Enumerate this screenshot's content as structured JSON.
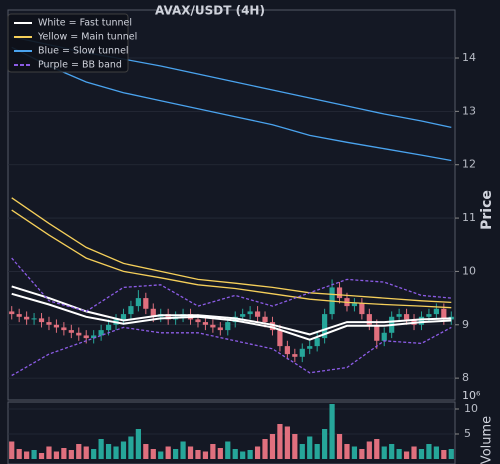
{
  "chart_data": {
    "type": "candlestick",
    "title": "AVAX/USDT (4H)",
    "ylabel": "Price",
    "volume_label": "Volume",
    "volume_offset_label": "10⁶",
    "ylim": [
      7.59,
      14.9
    ],
    "yticks": [
      8,
      9,
      10,
      11,
      12,
      13,
      14
    ],
    "vol_ylim": [
      0,
      11
    ],
    "vol_yticks": [
      5,
      10
    ],
    "grid": true,
    "up_color": "#26a69a",
    "down_color": "#e0707e",
    "open": [
      9.25,
      9.2,
      9.15,
      9.1,
      9.12,
      9.05,
      9.0,
      8.95,
      8.9,
      8.85,
      8.8,
      8.75,
      8.8,
      8.9,
      9.0,
      9.1,
      9.2,
      9.35,
      9.5,
      9.3,
      9.15,
      9.2,
      9.1,
      9.15,
      9.2,
      9.1,
      9.05,
      9.0,
      8.95,
      8.9,
      9.05,
      9.15,
      9.2,
      9.25,
      9.15,
      9.05,
      8.9,
      8.6,
      8.45,
      8.4,
      8.55,
      8.6,
      8.75,
      9.2,
      9.7,
      9.5,
      9.35,
      9.4,
      9.2,
      9.0,
      8.7,
      8.85,
      9.15,
      9.2,
      9.1,
      9.0,
      9.15,
      9.2,
      9.3,
      9.1
    ],
    "high": [
      9.35,
      9.3,
      9.25,
      9.22,
      9.22,
      9.15,
      9.1,
      9.05,
      9.0,
      8.95,
      8.9,
      8.9,
      9.0,
      9.1,
      9.2,
      9.3,
      9.45,
      9.65,
      9.6,
      9.4,
      9.3,
      9.3,
      9.25,
      9.3,
      9.3,
      9.2,
      9.15,
      9.1,
      9.05,
      9.15,
      9.25,
      9.3,
      9.35,
      9.35,
      9.25,
      9.15,
      9.0,
      8.7,
      8.55,
      8.65,
      8.7,
      8.85,
      9.3,
      9.85,
      9.8,
      9.6,
      9.5,
      9.5,
      9.3,
      9.1,
      8.95,
      9.25,
      9.3,
      9.3,
      9.2,
      9.25,
      9.3,
      9.4,
      9.4,
      9.25
    ],
    "low": [
      9.1,
      9.05,
      9.0,
      9.0,
      8.95,
      8.9,
      8.85,
      8.8,
      8.75,
      8.7,
      8.65,
      8.65,
      8.7,
      8.8,
      8.9,
      9.0,
      9.1,
      9.25,
      9.2,
      9.05,
      9.05,
      9.0,
      9.0,
      9.05,
      9.0,
      8.95,
      8.9,
      8.85,
      8.8,
      8.8,
      8.95,
      9.05,
      9.1,
      9.05,
      8.95,
      8.8,
      8.5,
      8.35,
      8.3,
      8.3,
      8.45,
      8.5,
      8.65,
      9.1,
      9.4,
      9.25,
      9.25,
      9.1,
      8.9,
      8.55,
      8.6,
      8.75,
      9.05,
      9.0,
      8.9,
      8.9,
      9.05,
      9.1,
      9.0,
      9.0
    ],
    "close": [
      9.2,
      9.15,
      9.1,
      9.12,
      9.05,
      9.0,
      8.95,
      8.9,
      8.85,
      8.8,
      8.75,
      8.8,
      8.9,
      9.0,
      9.1,
      9.2,
      9.35,
      9.5,
      9.3,
      9.15,
      9.2,
      9.1,
      9.15,
      9.2,
      9.1,
      9.05,
      9.0,
      8.95,
      8.9,
      9.05,
      9.15,
      9.2,
      9.25,
      9.15,
      9.05,
      8.9,
      8.6,
      8.45,
      8.4,
      8.55,
      8.6,
      8.75,
      9.2,
      9.7,
      9.5,
      9.35,
      9.4,
      9.2,
      9.0,
      8.7,
      8.85,
      9.15,
      9.2,
      9.1,
      9.0,
      9.15,
      9.2,
      9.3,
      9.1,
      9.15
    ],
    "volume": [
      3.5,
      2,
      1.5,
      1.8,
      1.2,
      2.5,
      1.5,
      2.2,
      1.8,
      3,
      2.5,
      2,
      4,
      3,
      2.5,
      3.5,
      4.5,
      6,
      3,
      2,
      1.5,
      2.5,
      2,
      3.5,
      2.5,
      1.8,
      1.5,
      3,
      2.2,
      3.5,
      2,
      1.5,
      1.8,
      2.5,
      4,
      5,
      7,
      6.5,
      5,
      3,
      4.5,
      3,
      6,
      11,
      5,
      3,
      2.5,
      2,
      3.5,
      4,
      2.5,
      3,
      2,
      1.5,
      2.5,
      2,
      3,
      2.5,
      1.8,
      2
    ],
    "line_x": [
      0,
      5,
      10,
      15,
      20,
      25,
      30,
      35,
      40,
      45,
      50,
      55,
      59
    ],
    "series": [
      {
        "name": "White = Fast tunnel",
        "color": "#ffffff",
        "dashed": false,
        "upper": [
          9.72,
          9.5,
          9.25,
          9.08,
          9.18,
          9.18,
          9.12,
          9.0,
          8.82,
          9.05,
          9.05,
          9.1,
          9.12
        ],
        "lower": [
          9.58,
          9.38,
          9.15,
          9.02,
          9.12,
          9.15,
          9.08,
          8.95,
          8.72,
          8.98,
          8.98,
          9.05,
          9.08
        ]
      },
      {
        "name": "Yellow = Main tunnel",
        "color": "#f5cf5a",
        "dashed": false,
        "upper": [
          11.38,
          10.9,
          10.45,
          10.15,
          10.0,
          9.85,
          9.78,
          9.7,
          9.6,
          9.55,
          9.5,
          9.45,
          9.42
        ],
        "lower": [
          11.15,
          10.68,
          10.25,
          10.0,
          9.88,
          9.75,
          9.68,
          9.58,
          9.48,
          9.42,
          9.38,
          9.35,
          9.32
        ]
      },
      {
        "name": "Blue = Slow tunnel",
        "color": "#4aa3ee",
        "dashed": false,
        "upper": [
          14.4,
          14.25,
          14.1,
          13.98,
          13.85,
          13.7,
          13.55,
          13.4,
          13.25,
          13.1,
          12.95,
          12.82,
          12.7
        ],
        "lower": [
          14.2,
          13.85,
          13.55,
          13.35,
          13.2,
          13.05,
          12.9,
          12.75,
          12.55,
          12.42,
          12.3,
          12.18,
          12.08
        ]
      },
      {
        "name": "Purple = BB band",
        "color": "#8c5ce6",
        "dashed": true,
        "upper": [
          10.25,
          9.45,
          9.25,
          9.7,
          9.75,
          9.35,
          9.55,
          9.35,
          9.6,
          9.85,
          9.8,
          9.55,
          9.5
        ],
        "lower": [
          8.05,
          8.45,
          8.7,
          8.95,
          8.85,
          8.85,
          8.7,
          8.55,
          8.1,
          8.2,
          8.7,
          8.65,
          8.95
        ]
      }
    ]
  }
}
